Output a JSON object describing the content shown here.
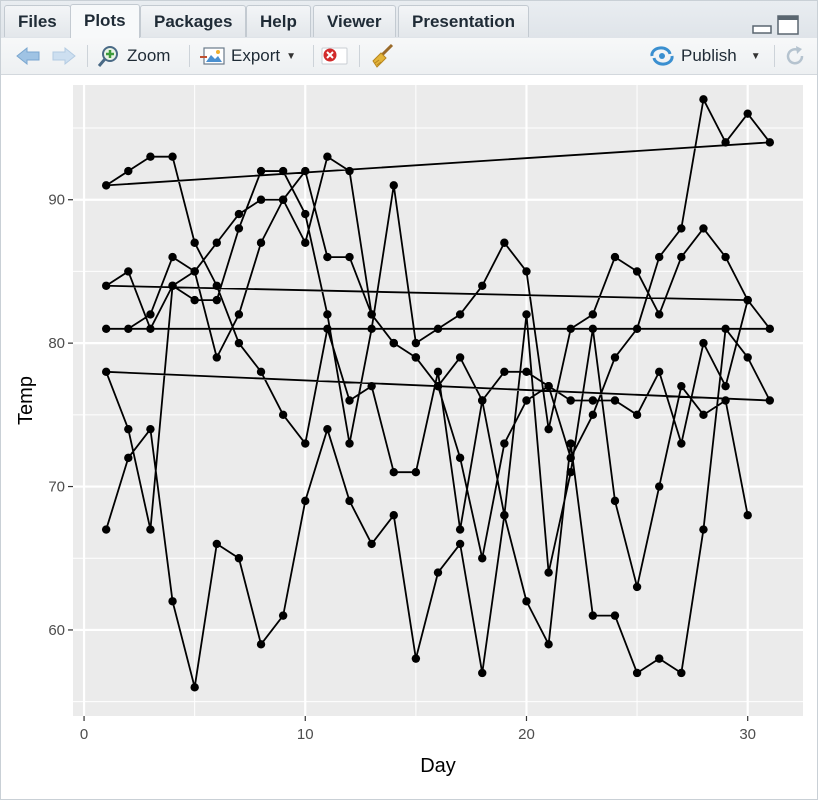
{
  "tabs": [
    {
      "label": "Files",
      "active": false
    },
    {
      "label": "Plots",
      "active": true
    },
    {
      "label": "Packages",
      "active": false
    },
    {
      "label": "Help",
      "active": false
    },
    {
      "label": "Viewer",
      "active": false
    },
    {
      "label": "Presentation",
      "active": false
    }
  ],
  "toolbar": {
    "zoom_label": "Zoom",
    "export_label": "Export",
    "publish_label": "Publish"
  },
  "icons": [
    "back-arrow-icon",
    "forward-arrow-icon",
    "zoom-icon",
    "export-icon",
    "remove-plot-icon",
    "broom-icon",
    "publish-icon",
    "refresh-icon",
    "minimize-icon",
    "maximize-icon"
  ],
  "colors": {
    "panel_bg": "#ebebeb",
    "grid": "#ffffff",
    "line": "#000000",
    "axis_text": "#4d4d4d",
    "title_text": "#000000"
  },
  "chart_data": {
    "type": "line",
    "xlabel": "Day",
    "ylabel": "Temp",
    "xticks": [
      0,
      10,
      20,
      30
    ],
    "yticks": [
      60,
      70,
      80,
      90
    ],
    "xlim": [
      -0.5,
      32.5
    ],
    "ylim": [
      54,
      98
    ],
    "grid": true,
    "markers": true,
    "x": [
      1,
      2,
      3,
      4,
      5,
      6,
      7,
      8,
      9,
      10,
      11,
      12,
      13,
      14,
      15,
      16,
      17,
      18,
      19,
      20,
      21,
      22,
      23,
      24,
      25,
      26,
      27,
      28,
      29,
      30,
      31,
      1,
      2,
      3,
      4,
      5,
      6,
      7,
      8,
      9,
      10,
      11,
      12,
      13,
      14,
      15,
      16,
      17,
      18,
      19,
      20,
      21,
      22,
      23,
      24,
      25,
      26,
      27,
      28,
      29,
      30,
      1,
      2,
      3,
      4,
      5,
      6,
      7,
      8,
      9,
      10,
      11,
      12,
      13,
      14,
      15,
      16,
      17,
      18,
      19,
      20,
      21,
      22,
      23,
      24,
      25,
      26,
      27,
      28,
      29,
      30,
      31,
      1,
      2,
      3,
      4,
      5,
      6,
      7,
      8,
      9,
      10,
      11,
      12,
      13,
      14,
      15,
      16,
      17,
      18,
      19,
      20,
      21,
      22,
      23,
      24,
      25,
      26,
      27,
      28,
      29,
      30,
      31,
      1,
      2,
      3,
      4,
      5,
      6,
      7,
      8,
      9,
      10,
      11,
      12,
      13,
      14,
      15,
      16,
      17,
      18,
      19,
      20,
      21,
      22,
      23,
      24,
      25,
      26,
      27,
      28,
      29,
      30
    ],
    "y": [
      67,
      72,
      74,
      62,
      56,
      66,
      65,
      59,
      61,
      69,
      74,
      69,
      66,
      68,
      58,
      64,
      66,
      57,
      68,
      62,
      59,
      73,
      61,
      61,
      57,
      58,
      57,
      67,
      81,
      79,
      76,
      78,
      74,
      67,
      84,
      85,
      79,
      82,
      87,
      90,
      87,
      93,
      92,
      82,
      80,
      79,
      77,
      72,
      65,
      73,
      76,
      77,
      76,
      76,
      76,
      75,
      78,
      73,
      80,
      77,
      83,
      84,
      85,
      81,
      84,
      83,
      83,
      88,
      92,
      92,
      89,
      82,
      73,
      81,
      91,
      80,
      81,
      82,
      84,
      87,
      85,
      74,
      81,
      82,
      86,
      85,
      82,
      86,
      88,
      86,
      83,
      81,
      81,
      81,
      82,
      86,
      85,
      87,
      89,
      90,
      90,
      92,
      86,
      86,
      82,
      80,
      79,
      77,
      79,
      76,
      78,
      78,
      77,
      72,
      75,
      79,
      81,
      86,
      88,
      97,
      94,
      96,
      94,
      91,
      92,
      93,
      93,
      87,
      84,
      80,
      78,
      75,
      73,
      81,
      76,
      77,
      71,
      71,
      78,
      67,
      76,
      68,
      82,
      64,
      71,
      81,
      69,
      63,
      70,
      77,
      75,
      76,
      68
    ]
  }
}
